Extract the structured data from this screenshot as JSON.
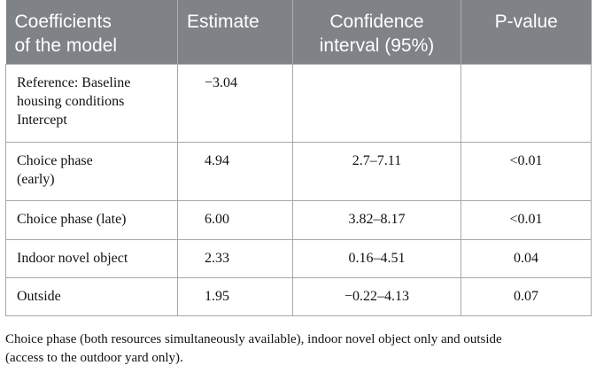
{
  "table": {
    "headers": [
      [
        "Coefficients",
        "of the model"
      ],
      [
        "Estimate"
      ],
      [
        "Confidence",
        "interval (95%)"
      ],
      [
        "P-value"
      ]
    ],
    "rows": [
      {
        "label": [
          "Reference: Baseline",
          "housing conditions",
          "Intercept"
        ],
        "estimate": "−3.04",
        "ci": "",
        "p": ""
      },
      {
        "label": [
          "Choice phase",
          "(early)"
        ],
        "estimate": "4.94",
        "ci": "2.7–7.11",
        "p": "<0.01"
      },
      {
        "label": [
          "Choice phase (late)"
        ],
        "estimate": "6.00",
        "ci": "3.82–8.17",
        "p": "<0.01"
      },
      {
        "label": [
          "Indoor novel object"
        ],
        "estimate": "2.33",
        "ci": "0.16–4.51",
        "p": "0.04"
      },
      {
        "label": [
          "Outside"
        ],
        "estimate": "1.95",
        "ci": "−0.22–4.13",
        "p": "0.07"
      }
    ]
  },
  "footnote": {
    "line1": "Choice phase (both resources simultaneously available), indoor novel object only and outside",
    "line2": "(access to the outdoor yard only)."
  },
  "colors": {
    "header_bg": "#7f8286",
    "header_text": "#ffffff",
    "border": "#a7a7a7"
  }
}
